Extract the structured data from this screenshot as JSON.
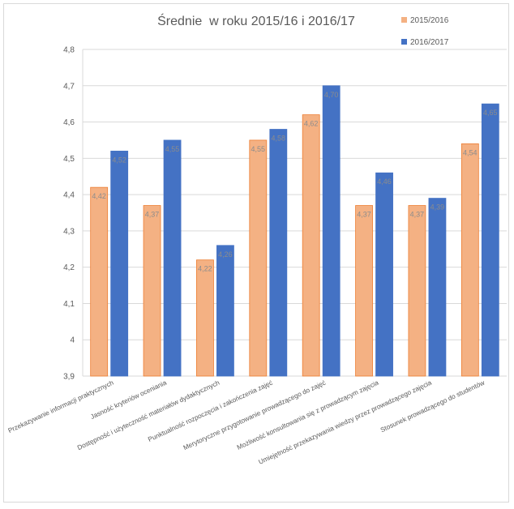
{
  "chart_data": {
    "type": "bar",
    "title": "Średnie  w roku 2015/16 i 2016/17",
    "categories": [
      "Przekazywanie informacji praktycznych",
      "Jasność kryteriów oceniania",
      "Dostępność i użyteczność materiałów dydaktycznych",
      "Punktualność rozpoczęcia i zakończenia zajęć",
      "Merytoryczne przygotowanie prowadzącego do zajęć",
      "Możliwość konsultowania się z prowadzącym zajęcia",
      "Umiejętność przekazywania wiedzy przez prowadzącego zajęcia",
      "Stosunek prowadzącego do studentów"
    ],
    "series": [
      {
        "name": "2015/2016",
        "color": "#f4b183",
        "values": [
          4.42,
          4.37,
          4.22,
          4.55,
          4.62,
          4.37,
          4.37,
          4.54
        ],
        "labels": [
          "4,42",
          "4,37",
          "4,22",
          "4,55",
          "4,62",
          "4,37",
          "4,37",
          "4,54"
        ]
      },
      {
        "name": "2016/2017",
        "color": "#4472c4",
        "values": [
          4.52,
          4.55,
          4.26,
          4.58,
          4.7,
          4.46,
          4.39,
          4.65
        ],
        "labels": [
          "4,52",
          "4,55",
          "4,26",
          "4,58",
          "4,70",
          "4,46",
          "4,39",
          "4,65"
        ]
      }
    ],
    "ylim": [
      3.9,
      4.8
    ],
    "yticks": [
      3.9,
      4.0,
      4.1,
      4.2,
      4.3,
      4.4,
      4.5,
      4.6,
      4.7,
      4.8
    ],
    "ytick_labels": [
      "3,9",
      "4",
      "4,1",
      "4,2",
      "4,3",
      "4,4",
      "4,5",
      "4,6",
      "4,7",
      "4,8"
    ],
    "grid": true,
    "legend_position": "top-right",
    "xlabel": "",
    "ylabel": ""
  }
}
